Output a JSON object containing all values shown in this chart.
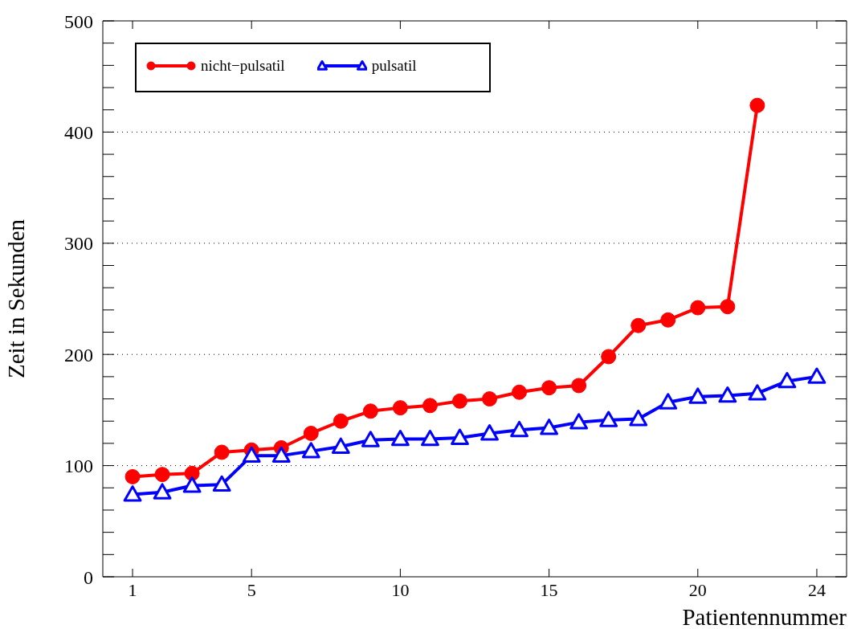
{
  "chart_data": {
    "type": "line",
    "xlabel": "Patientennummer",
    "ylabel": "Zeit in Sekunden",
    "x": [
      1,
      2,
      3,
      4,
      5,
      6,
      7,
      8,
      9,
      10,
      11,
      12,
      13,
      14,
      15,
      16,
      17,
      18,
      19,
      20,
      21,
      22,
      23,
      24
    ],
    "series": [
      {
        "name": "nicht−pulsatil",
        "color": "#ff0000",
        "marker": "circle",
        "values": [
          90,
          92,
          93,
          112,
          114,
          116,
          129,
          140,
          149,
          152,
          154,
          158,
          160,
          166,
          170,
          172,
          198,
          226,
          231,
          242,
          243,
          424,
          null,
          null
        ]
      },
      {
        "name": "pulsatil",
        "color": "#0000ff",
        "marker": "triangle",
        "values": [
          74,
          76,
          82,
          83,
          109,
          109,
          113,
          117,
          123,
          124,
          124,
          125,
          129,
          132,
          134,
          139,
          141,
          142,
          157,
          162,
          163,
          165,
          176,
          180
        ]
      }
    ],
    "xlim": [
      0,
      25
    ],
    "xticks": [
      1,
      5,
      10,
      15,
      20,
      24
    ],
    "ylim": [
      0,
      500
    ],
    "yticks": [
      0,
      {
        "value": 20,
        "label": null
      },
      {
        "value": 40,
        "label": null
      },
      {
        "value": 60,
        "label": null
      },
      {
        "value": 80,
        "label": null
      },
      100,
      {
        "value": 120,
        "label": null
      },
      {
        "value": 140,
        "label": null
      },
      {
        "value": 160,
        "label": null
      },
      {
        "value": 180,
        "label": null
      },
      200,
      {
        "value": 220,
        "label": null
      },
      {
        "value": 240,
        "label": null
      },
      {
        "value": 260,
        "label": null
      },
      {
        "value": 280,
        "label": null
      },
      300,
      {
        "value": 320,
        "label": null
      },
      {
        "value": 340,
        "label": null
      },
      {
        "value": 360,
        "label": null
      },
      {
        "value": 380,
        "label": null
      },
      400,
      {
        "value": 420,
        "label": null
      },
      {
        "value": 440,
        "label": null
      },
      {
        "value": 460,
        "label": null
      },
      {
        "value": 480,
        "label": null
      },
      500
    ],
    "grid": "y",
    "legend": "top left",
    "line_style": "solid"
  }
}
